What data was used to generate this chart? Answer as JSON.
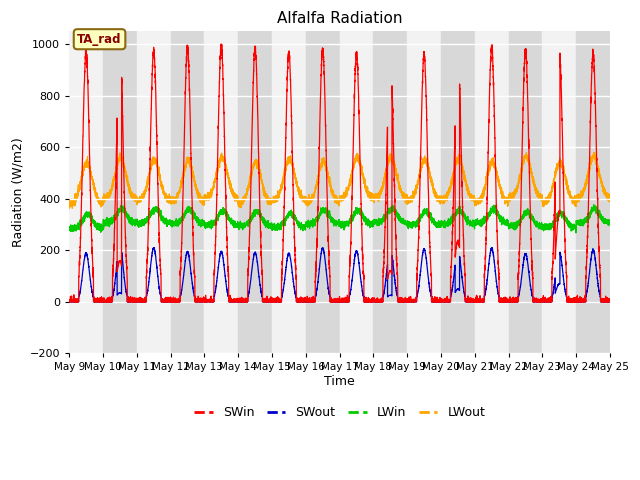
{
  "title": "Alfalfa Radiation",
  "xlabel": "Time",
  "ylabel": "Radiation (W/m2)",
  "ylim": [
    -200,
    1050
  ],
  "yticks": [
    -200,
    0,
    200,
    400,
    600,
    800,
    1000
  ],
  "legend_label": "TA_rad",
  "series_colors": {
    "SWin": "#ff0000",
    "SWout": "#0000cc",
    "LWin": "#00cc00",
    "LWout": "#ffa500"
  },
  "n_days": 16,
  "start_day": 9,
  "points_per_day": 480,
  "fig_bg": "#ffffff",
  "plot_bg": "#e8e8e8",
  "band_light": "#f2f2f2",
  "band_dark": "#d8d8d8"
}
